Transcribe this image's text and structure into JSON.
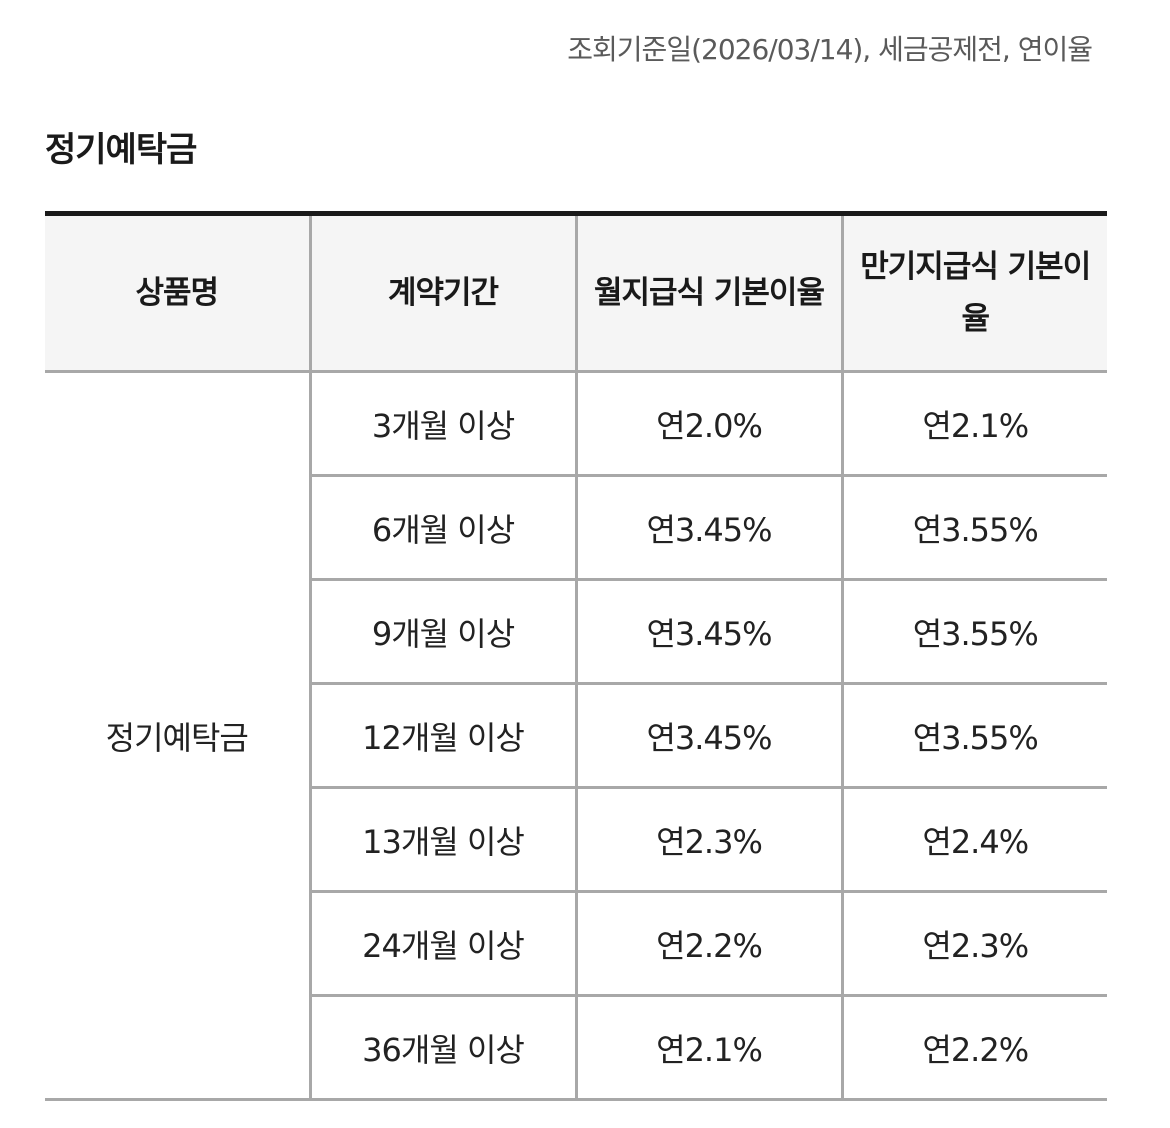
{
  "notice": "조회기준일(2026/03/14), 세금공제전, 연이율",
  "section_title": "정기예탁금",
  "table": {
    "headers": [
      "상품명",
      "계약기간",
      "월지급식 기본이율",
      "만기지급식 기본이율"
    ],
    "product_name": "정기예탁금",
    "rows": [
      {
        "period": "3개월 이상",
        "monthly": "연2.0%",
        "maturity": "연2.1%"
      },
      {
        "period": "6개월 이상",
        "monthly": "연3.45%",
        "maturity": "연3.55%"
      },
      {
        "period": "9개월 이상",
        "monthly": "연3.45%",
        "maturity": "연3.55%"
      },
      {
        "period": "12개월 이상",
        "monthly": "연3.45%",
        "maturity": "연3.55%"
      },
      {
        "period": "13개월 이상",
        "monthly": "연2.3%",
        "maturity": "연2.4%"
      },
      {
        "period": "24개월 이상",
        "monthly": "연2.2%",
        "maturity": "연2.3%"
      },
      {
        "period": "36개월 이상",
        "monthly": "연2.1%",
        "maturity": "연2.2%"
      }
    ]
  }
}
